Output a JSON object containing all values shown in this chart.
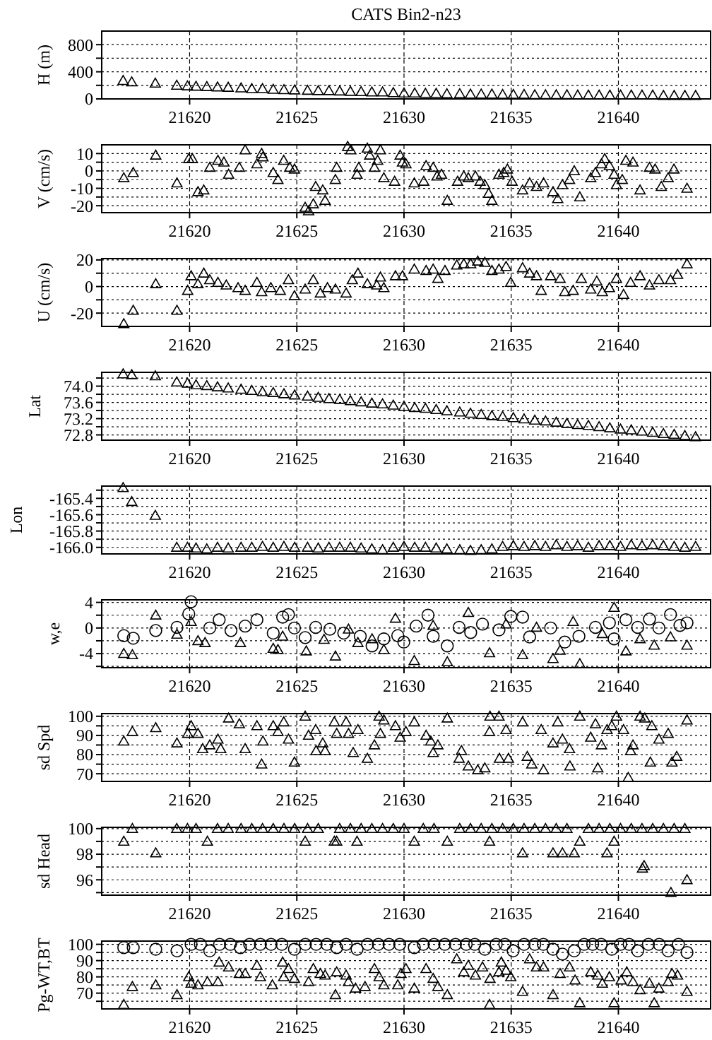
{
  "chart_data": [
    {
      "type": "scatter",
      "title": "CATS Bin2-n23",
      "ylabel": "H (m)",
      "xlim": [
        21615.9,
        21644.3
      ],
      "xticks": [
        21620,
        21625,
        21630,
        21635,
        21640
      ],
      "ylim": [
        0,
        1000
      ],
      "yticks": [
        0,
        {
          "value": 200,
          "label": null
        },
        400,
        {
          "value": 600,
          "label": null
        },
        800
      ],
      "grid": true,
      "marker": "triangle",
      "series": [
        {
          "color": "#000000",
          "x": [
            21616.9,
            21617.3,
            21618.4,
            21619.4,
            21619.9,
            21620.3,
            21620.8,
            21621.3,
            21621.8,
            21622.4,
            21622.9,
            21623.4,
            21623.9,
            21624.4,
            21624.9,
            21625.5,
            21626.0,
            21626.5,
            21627.0,
            21627.5,
            21628.0,
            21628.5,
            21629.0,
            21629.5,
            21630.0,
            21630.5,
            21631.0,
            21631.5,
            21632.0,
            21632.6,
            21633.1,
            21633.6,
            21634.1,
            21634.6,
            21635.1,
            21635.6,
            21636.1,
            21636.6,
            21637.1,
            21637.6,
            21638.1,
            21638.6,
            21639.1,
            21639.6,
            21640.1,
            21640.6,
            21641.1,
            21641.6,
            21642.1,
            21642.6,
            21643.1,
            21643.6
          ],
          "values": [
            270,
            250,
            230,
            200,
            190,
            185,
            180,
            175,
            170,
            160,
            150,
            150,
            140,
            135,
            130,
            125,
            120,
            120,
            115,
            110,
            105,
            100,
            100,
            90,
            85,
            85,
            80,
            80,
            75,
            75,
            70,
            70,
            70,
            65,
            65,
            65,
            60,
            60,
            60,
            60,
            55,
            55,
            55,
            55,
            55,
            55,
            55,
            55,
            50,
            50,
            50,
            50
          ]
        }
      ]
    },
    {
      "type": "scatter",
      "ylabel": "V (cm/s)",
      "xlim": [
        21615.9,
        21644.3
      ],
      "xticks": [
        21620,
        21625,
        21630,
        21635,
        21640
      ],
      "ylim": [
        -24,
        15
      ],
      "yticks": [
        -20,
        {
          "value": -15,
          "label": null
        },
        -10,
        {
          "value": -5,
          "label": null
        },
        0,
        {
          "value": 5,
          "label": null
        },
        10
      ],
      "grid": true,
      "marker": "triangle",
      "series": [
        {
          "color": "#000000",
          "x": [
            21616.93,
            21617.37,
            21618.42,
            21619.41,
            21619.96,
            21620.13,
            21620.39,
            21620.66,
            21620.94,
            21621.32,
            21621.6,
            21621.82,
            21622.32,
            21622.59,
            21623.14,
            21623.36,
            21623.42,
            21623.9,
            21624.12,
            21624.39,
            21624.67,
            21624.89,
            21625.39,
            21625.55,
            21625.77,
            21625.88,
            21626.21,
            21626.32,
            21626.8,
            21626.86,
            21627.37,
            21627.52,
            21627.81,
            21627.89,
            21628.29,
            21628.4,
            21628.62,
            21628.77,
            21628.9,
            21629.06,
            21629.56,
            21629.82,
            21629.93,
            21630.09,
            21630.48,
            21630.92,
            21631.03,
            21631.36,
            21631.54,
            21631.75,
            21632.02,
            21632.5,
            21632.79,
            21633.0,
            21633.33,
            21633.55,
            21633.77,
            21633.95,
            21634.1,
            21634.43,
            21634.65,
            21634.82,
            21635.04,
            21635.53,
            21635.86,
            21636.18,
            21636.51,
            21636.95,
            21637.17,
            21637.39,
            21637.72,
            21637.94,
            21638.2,
            21638.71,
            21638.93,
            21639.21,
            21639.36,
            21639.58,
            21639.8,
            21639.91,
            21640.18,
            21640.35,
            21640.68,
            21641.01,
            21641.45,
            21641.71,
            21642.0,
            21642.32,
            21642.59,
            21643.2
          ],
          "values": [
            -4,
            -1,
            9,
            -7,
            7,
            7,
            -12,
            -11,
            2,
            6,
            5,
            -2,
            2,
            12,
            4,
            10,
            8,
            -1,
            -5,
            6,
            2,
            1,
            -21,
            -23,
            -19,
            -9,
            -11,
            -17,
            -5,
            2,
            14,
            12,
            -2,
            2,
            13,
            9,
            2,
            6,
            12,
            -4,
            -6,
            9,
            5,
            4,
            -7,
            -6,
            3,
            2,
            -3,
            -2,
            -17,
            -6,
            -3,
            -4,
            -3,
            -6,
            -8,
            -13,
            -17,
            -2,
            -1,
            1,
            -6,
            -11,
            -7,
            -9,
            -7,
            -12,
            -16,
            -8,
            -5,
            0,
            -15,
            -4,
            -1,
            4,
            7,
            3,
            -2,
            -8,
            -5,
            6,
            5,
            -11,
            2,
            1,
            -9,
            -4,
            1,
            -10
          ]
        }
      ]
    },
    {
      "type": "scatter",
      "ylabel": "U (cm/s)",
      "xlim": [
        21615.9,
        21644.3
      ],
      "xticks": [
        21620,
        21625,
        21630,
        21635,
        21640
      ],
      "ylim": [
        -30,
        21
      ],
      "yticks": [
        -20,
        {
          "value": -10,
          "label": null
        },
        0,
        {
          "value": 10,
          "label": null
        },
        20
      ],
      "grid": true,
      "marker": "triangle",
      "series": [
        {
          "color": "#000000",
          "x": [
            21616.93,
            21617.37,
            21618.42,
            21619.41,
            21619.91,
            21620.07,
            21620.39,
            21620.66,
            21620.94,
            21621.32,
            21621.71,
            21622.26,
            21622.59,
            21623.14,
            21623.36,
            21623.79,
            21624.23,
            21624.61,
            21624.89,
            21625.39,
            21625.77,
            21626.1,
            21626.43,
            21626.8,
            21627.3,
            21627.59,
            21627.85,
            21628.29,
            21628.73,
            21628.9,
            21629.06,
            21629.6,
            21629.93,
            21630.48,
            21631.03,
            21631.36,
            21631.58,
            21631.91,
            21632.46,
            21632.79,
            21633.11,
            21633.44,
            21633.77,
            21634.1,
            21634.43,
            21634.76,
            21634.98,
            21635.53,
            21635.86,
            21636.18,
            21636.4,
            21636.84,
            21637.28,
            21637.5,
            21637.89,
            21638.27,
            21638.71,
            21638.99,
            21639.25,
            21639.58,
            21639.91,
            21640.24,
            21640.57,
            21641.01,
            21641.45,
            21641.89,
            21642.43,
            21642.76,
            21643.2
          ],
          "values": [
            -28,
            -18,
            2,
            -18,
            -3,
            8,
            2,
            10,
            5,
            3,
            1,
            -1,
            -3,
            3,
            -4,
            -1,
            -3,
            5,
            -7,
            -2,
            5,
            -5,
            -1,
            -2,
            -5,
            5,
            10,
            2,
            1,
            7,
            -1,
            8,
            8,
            13,
            12,
            13,
            6,
            12,
            16,
            17,
            17,
            19,
            18,
            12,
            13,
            15,
            3,
            14,
            10,
            8,
            -3,
            8,
            6,
            -4,
            -3,
            6,
            -2,
            4,
            -4,
            -1,
            6,
            -6,
            3,
            8,
            1,
            5,
            5,
            9,
            17
          ]
        }
      ]
    },
    {
      "type": "scatter",
      "ylabel": "Lat",
      "xlim": [
        21615.9,
        21644.3
      ],
      "xticks": [
        21620,
        21625,
        21630,
        21635,
        21640
      ],
      "ylim": [
        72.67,
        74.34
      ],
      "yticks": [
        {
          "value": 72.8,
          "label": "72.8"
        },
        {
          "value": 73,
          "label": null
        },
        {
          "value": 73.2,
          "label": "73.2"
        },
        {
          "value": 73.4,
          "label": null
        },
        {
          "value": 73.6,
          "label": "73.6"
        },
        {
          "value": 73.8,
          "label": null
        },
        {
          "value": 74,
          "label": "74.0"
        },
        {
          "value": 74.2,
          "label": null
        }
      ],
      "grid": true,
      "marker": "triangle",
      "series": [
        {
          "color": "#000000",
          "x": [
            21616.9,
            21617.3,
            21618.4,
            21619.4,
            21619.9,
            21620.3,
            21620.8,
            21621.3,
            21621.8,
            21622.4,
            21622.9,
            21623.4,
            21623.9,
            21624.4,
            21624.9,
            21625.5,
            21626.0,
            21626.5,
            21627.0,
            21627.5,
            21628.0,
            21628.5,
            21629.0,
            21629.5,
            21630.0,
            21630.5,
            21631.0,
            21631.5,
            21632.0,
            21632.6,
            21633.1,
            21633.6,
            21634.1,
            21634.6,
            21635.1,
            21635.6,
            21636.1,
            21636.6,
            21637.1,
            21637.6,
            21638.1,
            21638.6,
            21639.1,
            21639.6,
            21640.1,
            21640.6,
            21641.1,
            21641.6,
            21642.1,
            21642.6,
            21643.1,
            21643.6
          ],
          "values": [
            74.3,
            74.28,
            74.25,
            74.1,
            74.07,
            74.03,
            74.01,
            73.98,
            73.95,
            73.92,
            73.89,
            73.86,
            73.84,
            73.81,
            73.78,
            73.75,
            73.72,
            73.69,
            73.67,
            73.64,
            73.61,
            73.58,
            73.56,
            73.53,
            73.5,
            73.47,
            73.45,
            73.42,
            73.39,
            73.36,
            73.33,
            73.3,
            73.27,
            73.25,
            73.22,
            73.19,
            73.16,
            73.14,
            73.11,
            73.08,
            73.05,
            73.03,
            73.0,
            72.97,
            72.94,
            72.92,
            72.89,
            72.86,
            72.83,
            72.81,
            72.78,
            72.75
          ]
        }
      ]
    },
    {
      "type": "scatter",
      "ylabel": "Lon",
      "xlim": [
        21615.9,
        21644.3
      ],
      "xticks": [
        21620,
        21625,
        21630,
        21635,
        21640
      ],
      "ylim": [
        -166.08,
        -165.25
      ],
      "yticks": [
        {
          "value": -166,
          "label": "-166.0"
        },
        {
          "value": -165.9,
          "label": null
        },
        {
          "value": -165.8,
          "label": "-165.8"
        },
        {
          "value": -165.7,
          "label": null
        },
        {
          "value": -165.6,
          "label": "-165.6"
        },
        {
          "value": -165.5,
          "label": null
        },
        {
          "value": -165.4,
          "label": "-165.4"
        },
        {
          "value": -165.3,
          "label": null
        }
      ],
      "grid": true,
      "marker": "triangle",
      "series": [
        {
          "color": "#000000",
          "x": [
            21616.9,
            21617.3,
            21618.4,
            21619.4,
            21619.9,
            21620.3,
            21620.8,
            21621.3,
            21621.8,
            21622.4,
            21622.9,
            21623.4,
            21623.9,
            21624.4,
            21624.9,
            21625.5,
            21626.0,
            21626.5,
            21627.0,
            21627.5,
            21628.0,
            21628.5,
            21629.0,
            21629.5,
            21630.0,
            21630.5,
            21631.0,
            21631.5,
            21632.0,
            21632.6,
            21633.1,
            21633.6,
            21634.1,
            21634.6,
            21635.1,
            21635.6,
            21636.1,
            21636.6,
            21637.1,
            21637.6,
            21638.1,
            21638.6,
            21639.1,
            21639.6,
            21640.1,
            21640.6,
            21641.1,
            21641.6,
            21642.1,
            21642.6,
            21643.1,
            21643.6
          ],
          "values": [
            -165.27,
            -165.44,
            -165.61,
            -166.0,
            -166.0,
            -166.01,
            -166.02,
            -166.0,
            -166.01,
            -166.0,
            -166.0,
            -165.99,
            -166.0,
            -165.99,
            -166.0,
            -166.0,
            -166.01,
            -166.0,
            -166.0,
            -166.0,
            -166.01,
            -166.02,
            -166.03,
            -166.0,
            -165.99,
            -166.0,
            -166.0,
            -166.01,
            -166.02,
            -166.03,
            -166.04,
            -166.03,
            -166.02,
            -165.99,
            -165.98,
            -165.99,
            -165.98,
            -165.99,
            -165.97,
            -165.99,
            -165.98,
            -166.0,
            -165.98,
            -165.98,
            -165.99,
            -165.97,
            -165.98,
            -165.97,
            -165.98,
            -165.99,
            -166.0,
            -165.99
          ]
        }
      ]
    },
    {
      "type": "scatter",
      "ylabel": "w,e",
      "xlim": [
        21615.9,
        21644.3
      ],
      "xticks": [
        21620,
        21625,
        21630,
        21635,
        21640
      ],
      "ylim": [
        -6.2,
        4.4
      ],
      "yticks": [
        {
          "value": -6,
          "label": null
        },
        -4,
        {
          "value": -2,
          "label": null
        },
        0,
        {
          "value": 2,
          "label": null
        },
        4
      ],
      "grid": true,
      "series": [
        {
          "color": "#000000",
          "marker": "triangle",
          "x": [
            21616.93,
            21617.33,
            21618.42,
            21619.41,
            21620.07,
            21620.39,
            21620.72,
            21622.37,
            21623.9,
            21624.12,
            21624.34,
            21625.44,
            21626.27,
            21626.8,
            21627.41,
            21627.85,
            21628.51,
            21629.06,
            21629.6,
            21630.48,
            21631.36,
            21632.02,
            21633.0,
            21633.99,
            21634.76,
            21635.53,
            21636.18,
            21636.95,
            21637.28,
            21637.89,
            21638.2,
            21639.25,
            21639.8,
            21640.35,
            21641.01,
            21641.67,
            21642.43,
            21643.2
          ],
          "values": [
            -4,
            -4.2,
            2,
            -1,
            1,
            -2,
            -2.3,
            -2.3,
            -3.2,
            -3.4,
            -1.3,
            -3.6,
            -1.8,
            -4.4,
            -0.2,
            -2.3,
            -1.7,
            -3.4,
            1.5,
            -5.1,
            0.4,
            -5.3,
            2.4,
            -3.9,
            0.6,
            -4.2,
            0.1,
            -4.8,
            -3.5,
            1,
            -5.6,
            -0.9,
            3.2,
            -3.6,
            -1.7,
            -2.7,
            -1.4,
            -2.7
          ]
        },
        {
          "color": "#000000",
          "marker": "circle",
          "x": [
            21616.93,
            21617.37,
            21618.42,
            21619.41,
            21619.96,
            21620.07,
            21620.94,
            21621.38,
            21621.93,
            21622.59,
            21623.14,
            21623.9,
            21624.34,
            21624.61,
            21624.89,
            21625.39,
            21625.88,
            21626.54,
            21627.19,
            21627.96,
            21628.51,
            21629.06,
            21629.71,
            21629.99,
            21630.57,
            21631.12,
            21631.36,
            21632.02,
            21632.57,
            21633.11,
            21633.66,
            21634.43,
            21634.98,
            21635.53,
            21635.86,
            21636.84,
            21637.5,
            21638.16,
            21638.93,
            21639.58,
            21639.8,
            21640.35,
            21640.9,
            21641.45,
            21641.89,
            21642.43,
            21642.87,
            21643.2
          ],
          "values": [
            -1.2,
            -1.6,
            -0.4,
            0.1,
            2.2,
            4.1,
            0,
            1.3,
            -0.4,
            0.3,
            1.3,
            -0.8,
            1.7,
            2.1,
            0,
            -1.5,
            0.1,
            -0.2,
            -0.8,
            -1.3,
            -2.8,
            -1.7,
            -1.2,
            -2.2,
            0.3,
            2,
            -1.3,
            -2.8,
            0.1,
            -0.7,
            0.6,
            -0.3,
            1.8,
            1.7,
            -1.4,
            0,
            -2.2,
            -1.3,
            0.1,
            0.8,
            -1.7,
            1.3,
            0.1,
            1.4,
            0,
            2.1,
            0.4,
            0.8
          ]
        }
      ]
    },
    {
      "type": "scatter",
      "ylabel": "sd Spd",
      "xlim": [
        21615.9,
        21644.3
      ],
      "xticks": [
        21620,
        21625,
        21630,
        21635,
        21640
      ],
      "ylim": [
        66,
        101.4
      ],
      "yticks": [
        70,
        {
          "value": 75,
          "label": null
        },
        80,
        {
          "value": 85,
          "label": null
        },
        90,
        {
          "value": 95,
          "label": null
        },
        100
      ],
      "grid": true,
      "marker": "triangle",
      "series": [
        {
          "color": "#000000",
          "x": [
            21616.93,
            21617.33,
            21618.42,
            21619.41,
            21619.91,
            21620.07,
            21620.39,
            21620.61,
            21620.94,
            21621.32,
            21621.45,
            21621.82,
            21622.32,
            21622.59,
            21623.14,
            21623.36,
            21623.42,
            21623.9,
            21624.12,
            21624.39,
            21624.61,
            21624.89,
            21625.39,
            21625.55,
            21625.88,
            21625.9,
            21626.21,
            21626.32,
            21626.75,
            21626.86,
            21627.3,
            21627.41,
            21627.63,
            21627.85,
            21628.29,
            21628.62,
            21628.84,
            21628.9,
            21629.06,
            21629.6,
            21629.82,
            21630.09,
            21630.48,
            21631.03,
            21631.25,
            21631.58,
            21631.36,
            21632.02,
            21632.68,
            21632.57,
            21633.0,
            21633.44,
            21633.77,
            21633.99,
            21634.01,
            21634.43,
            21634.45,
            21634.76,
            21634.87,
            21635.53,
            21635.75,
            21635.96,
            21636.4,
            21636.51,
            21637.17,
            21636.95,
            21637.39,
            21637.72,
            21637.74,
            21638.2,
            21638.71,
            21638.93,
            21639.04,
            21639.21,
            21639.47,
            21639.69,
            21639.91,
            21640.24,
            21640.46,
            21640.57,
            21640.68,
            21641.01,
            21641.23,
            21641.56,
            21641.49,
            21641.89,
            21642.32,
            21642.5,
            21642.72,
            21643.2
          ],
          "values": [
            87,
            92,
            94,
            86,
            91,
            95,
            91,
            83,
            85,
            88,
            83,
            99,
            96,
            83,
            95,
            75,
            87,
            95,
            92,
            97,
            88,
            76,
            100,
            90,
            93,
            82,
            86,
            82,
            97,
            91,
            97,
            91,
            81,
            93,
            78,
            85,
            100,
            91,
            98,
            95,
            89,
            92,
            97,
            90,
            87,
            85,
            81,
            99,
            82,
            78,
            74,
            72,
            73,
            92,
            100,
            100,
            78,
            93,
            78,
            97,
            79,
            75,
            93,
            72,
            97,
            86,
            88,
            83,
            74,
            100,
            89,
            96,
            73,
            85,
            93,
            95,
            100,
            93,
            68,
            82,
            85,
            100,
            99,
            95,
            76,
            88,
            91,
            76,
            79,
            98
          ]
        }
      ]
    },
    {
      "type": "scatter",
      "ylabel": "sd Head",
      "xlim": [
        21615.9,
        21644.3
      ],
      "xticks": [
        21620,
        21625,
        21630,
        21635,
        21640
      ],
      "ylim": [
        94.8,
        100.1
      ],
      "yticks": [
        {
          "value": 95,
          "label": null
        },
        96,
        {
          "value": 97,
          "label": null
        },
        98,
        {
          "value": 99,
          "label": null
        },
        100
      ],
      "grid": true,
      "marker": "triangle",
      "series": [
        {
          "color": "#000000",
          "x": [
            21616.93,
            21617.33,
            21618.42,
            21619.4,
            21619.9,
            21620.3,
            21620.83,
            21621.3,
            21621.8,
            21622.4,
            21622.9,
            21623.4,
            21623.9,
            21624.4,
            21624.9,
            21625.39,
            21625.5,
            21626.0,
            21626.75,
            21626.86,
            21627.0,
            21627.5,
            21627.81,
            21628.0,
            21628.5,
            21629.0,
            21629.5,
            21630.0,
            21630.48,
            21630.9,
            21631.4,
            21632.02,
            21632.6,
            21633.1,
            21633.6,
            21633.99,
            21634.1,
            21634.6,
            21635.1,
            21635.53,
            21635.6,
            21636.1,
            21636.6,
            21636.95,
            21637.1,
            21637.39,
            21637.6,
            21637.94,
            21638.2,
            21638.6,
            21639.1,
            21639.47,
            21639.6,
            21639.8,
            21640.1,
            21640.6,
            21641.1,
            21641.12,
            21641.2,
            21641.6,
            21642.1,
            21642.45,
            21642.6,
            21643.1,
            21643.2
          ],
          "values": [
            99,
            100,
            98.1,
            100,
            100,
            100,
            99,
            100,
            100,
            100,
            100,
            100,
            100,
            100,
            100,
            99,
            100,
            100,
            99,
            99,
            100,
            100,
            99,
            100,
            100,
            100,
            100,
            100,
            99,
            100,
            100,
            99,
            100,
            100,
            100,
            99,
            100,
            100,
            100,
            98.1,
            100,
            100,
            100,
            98.1,
            100,
            98.1,
            100,
            98.1,
            99,
            100,
            100,
            98.1,
            100,
            99,
            100,
            100,
            100,
            96.9,
            97.1,
            100,
            100,
            95,
            100,
            100,
            96
          ]
        }
      ]
    },
    {
      "type": "scatter",
      "ylabel": "Pg-WT,BT",
      "xlim": [
        21615.9,
        21644.3
      ],
      "xticks": [
        21620,
        21625,
        21630,
        21635,
        21640
      ],
      "ylim": [
        60.3,
        102
      ],
      "yticks": [
        {
          "value": 65,
          "label": null
        },
        70,
        {
          "value": 75,
          "label": null
        },
        80,
        {
          "value": 85,
          "label": null
        },
        90,
        {
          "value": 95,
          "label": null
        },
        100
      ],
      "grid": true,
      "series": [
        {
          "color": "#000000",
          "marker": "circle",
          "x": [
            21616.93,
            21617.37,
            21618.42,
            21619.41,
            21620.07,
            21620.5,
            21620.94,
            21621.4,
            21621.9,
            21622.37,
            21622.8,
            21623.3,
            21623.8,
            21624.3,
            21624.89,
            21625.4,
            21625.9,
            21626.4,
            21626.86,
            21627.3,
            21627.81,
            21628.3,
            21628.8,
            21629.3,
            21629.8,
            21630.48,
            21630.9,
            21631.4,
            21631.9,
            21632.4,
            21632.9,
            21633.3,
            21633.77,
            21634.3,
            21634.7,
            21635.09,
            21635.6,
            21636.1,
            21636.5,
            21636.95,
            21637.39,
            21637.94,
            21638.4,
            21638.8,
            21639.2,
            21639.69,
            21640.1,
            21640.5,
            21640.9,
            21641.4,
            21641.9,
            21642.32,
            21642.8,
            21643.2
          ],
          "values": [
            98,
            98,
            97,
            96,
            100,
            100,
            96,
            100,
            100,
            98,
            100,
            100,
            100,
            100,
            97,
            100,
            100,
            100,
            98,
            100,
            97,
            100,
            100,
            100,
            100,
            98,
            100,
            100,
            100,
            100,
            100,
            100,
            97,
            100,
            100,
            96,
            100,
            100,
            100,
            97,
            94,
            96,
            100,
            100,
            100,
            97,
            100,
            100,
            96,
            100,
            100,
            96,
            100,
            95
          ]
        },
        {
          "color": "#000000",
          "marker": "triangle",
          "x": [
            21616.93,
            21617.33,
            21618.42,
            21619.41,
            21619.96,
            21620.07,
            21620.39,
            21620.83,
            21621.32,
            21621.38,
            21621.82,
            21622.32,
            21622.59,
            21623.14,
            21623.3,
            21623.86,
            21624.34,
            21624.39,
            21624.61,
            21624.89,
            21625.55,
            21625.77,
            21626.1,
            21626.32,
            21626.8,
            21626.86,
            21627.3,
            21627.41,
            21627.74,
            21628.18,
            21628.62,
            21628.84,
            21629.06,
            21629.71,
            21629.86,
            21630.09,
            21630.48,
            21631.03,
            21631.36,
            21631.58,
            21632.02,
            21632.46,
            21632.79,
            21633.0,
            21633.33,
            21633.66,
            21633.99,
            21634.01,
            21634.43,
            21634.54,
            21634.76,
            21634.98,
            21635.53,
            21635.86,
            21636.18,
            21636.51,
            21636.95,
            21637.28,
            21637.72,
            21637.98,
            21638.2,
            21638.71,
            21639.04,
            21639.25,
            21639.58,
            21639.8,
            21640.13,
            21640.39,
            21640.68,
            21641.01,
            21641.45,
            21641.67,
            21641.89,
            21642.32,
            21642.5,
            21642.76,
            21643.2
          ],
          "values": [
            63,
            74,
            75,
            69,
            80,
            76,
            75,
            77,
            77,
            89,
            86,
            82,
            82,
            87,
            80,
            75,
            89,
            80,
            85,
            79,
            77,
            85,
            82,
            81,
            69,
            83,
            81,
            77,
            73,
            74,
            85,
            80,
            75,
            75,
            82,
            85,
            73,
            85,
            79,
            74,
            69,
            91,
            83,
            87,
            81,
            86,
            63,
            79,
            83,
            89,
            84,
            80,
            71,
            91,
            86,
            86,
            69,
            82,
            86,
            78,
            64,
            83,
            81,
            76,
            80,
            64,
            78,
            83,
            77,
            72,
            76,
            64,
            73,
            77,
            82,
            81,
            71
          ]
        }
      ]
    }
  ]
}
